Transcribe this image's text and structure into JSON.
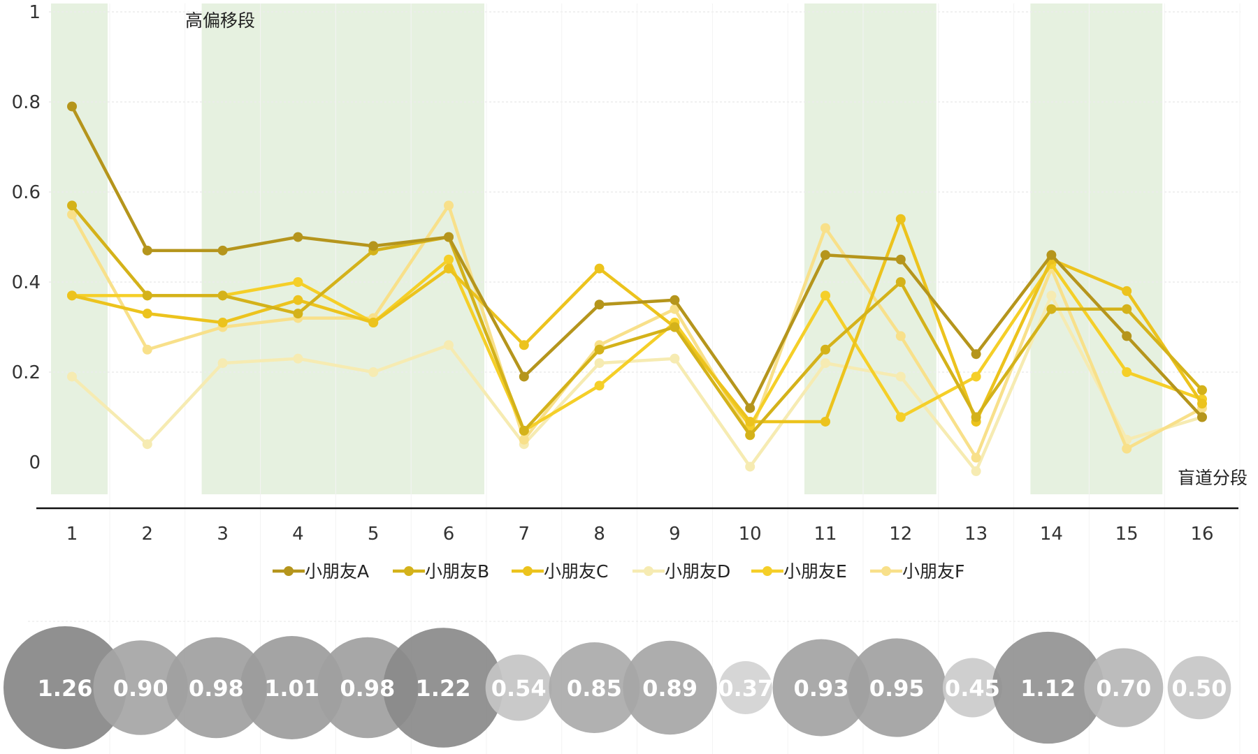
{
  "chart_data": {
    "type": "line",
    "x": [
      "1",
      "2",
      "3",
      "4",
      "5",
      "6",
      "7",
      "8",
      "9",
      "10",
      "11",
      "12",
      "13",
      "14",
      "15",
      "16"
    ],
    "xlabel": "盲道分段",
    "ylim": [
      0,
      1
    ],
    "yticks": [
      "0",
      "0.2",
      "0.4",
      "0.6",
      "0.8",
      "1"
    ],
    "yticks_values": [
      0,
      0.2,
      0.4,
      0.6,
      0.8,
      1
    ],
    "highlight_label": "高偏移段",
    "highlight_ranges": [
      [
        1,
        1
      ],
      [
        3,
        6
      ],
      [
        11,
        12
      ],
      [
        14,
        15
      ]
    ],
    "highlight_color": "#e6f1e0",
    "series": [
      {
        "name": "小朋友A",
        "color": "#b5951c",
        "values": [
          0.79,
          0.47,
          0.47,
          0.5,
          0.48,
          0.5,
          0.19,
          0.35,
          0.36,
          0.12,
          0.46,
          0.45,
          0.24,
          0.46,
          0.28,
          0.1
        ]
      },
      {
        "name": "小朋友B",
        "color": "#d4b21a",
        "values": [
          0.57,
          0.37,
          0.37,
          0.33,
          0.47,
          0.5,
          0.07,
          0.25,
          0.3,
          0.06,
          0.25,
          0.4,
          0.1,
          0.34,
          0.34,
          0.16
        ]
      },
      {
        "name": "小朋友C",
        "color": "#ecc31d",
        "values": [
          0.37,
          0.33,
          0.31,
          0.36,
          0.31,
          0.43,
          0.26,
          0.43,
          0.3,
          0.09,
          0.09,
          0.54,
          0.09,
          0.45,
          0.38,
          0.13
        ]
      },
      {
        "name": "小朋友D",
        "color": "#f6ebb2",
        "values": [
          0.19,
          0.04,
          0.22,
          0.23,
          0.2,
          0.26,
          0.04,
          0.22,
          0.23,
          -0.01,
          0.22,
          0.19,
          -0.02,
          0.37,
          0.05,
          0.1
        ]
      },
      {
        "name": "小朋友E",
        "color": "#f5cf28",
        "values": [
          0.37,
          0.37,
          0.37,
          0.4,
          0.31,
          0.45,
          0.07,
          0.17,
          0.31,
          0.08,
          0.37,
          0.1,
          0.19,
          0.44,
          0.2,
          0.14
        ]
      },
      {
        "name": "小朋友F",
        "color": "#f8e08a",
        "values": [
          0.55,
          0.25,
          0.3,
          0.32,
          0.32,
          0.57,
          0.05,
          0.26,
          0.34,
          0.06,
          0.52,
          0.28,
          0.01,
          0.43,
          0.03,
          0.12
        ]
      }
    ],
    "bubbles": {
      "values": [
        1.26,
        0.9,
        0.98,
        1.01,
        0.98,
        1.22,
        0.54,
        0.85,
        0.89,
        0.37,
        0.93,
        0.95,
        0.45,
        1.12,
        0.7,
        0.5
      ],
      "labels": [
        "1.26",
        "0.90",
        "0.98",
        "1.01",
        "0.98",
        "1.22",
        "0.54",
        "0.85",
        "0.89",
        "0.37",
        "0.93",
        "0.95",
        "0.45",
        "1.12",
        "0.70",
        "0.50"
      ]
    }
  }
}
